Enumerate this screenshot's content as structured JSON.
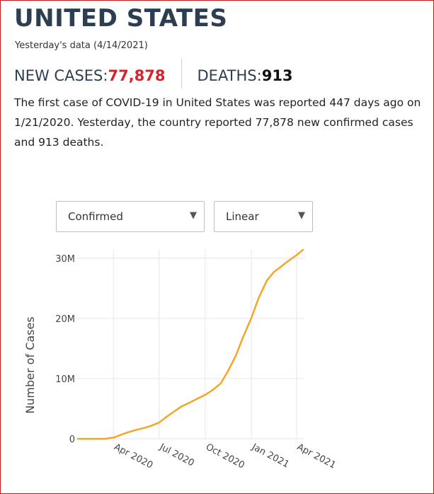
{
  "header": {
    "title": "UNITED STATES",
    "subtitle": "Yesterday's data (4/14/2021)"
  },
  "stats": {
    "new_cases_label": "NEW CASES: ",
    "new_cases_value": "77,878",
    "deaths_label": "DEATHS: ",
    "deaths_value": "913"
  },
  "description": "The first case of COVID-19 in United States was reported 447 days ago on 1/21/2020. Yesterday, the country reported 77,878 new confirmed cases and 913 deaths.",
  "controls": {
    "metric_selected": "Confirmed",
    "scale_selected": "Linear",
    "arrow_glyph": "▼"
  },
  "colors": {
    "accent_red": "#d9222a",
    "title_dark": "#2c3e50",
    "line_orange": "#f5a623",
    "grid": "#e6e6e6"
  },
  "chart_data": {
    "type": "line",
    "title": "",
    "xlabel": "",
    "ylabel": "Number of Cases",
    "y_ticks": [
      0,
      10000000,
      20000000,
      30000000
    ],
    "y_tick_labels": [
      "0",
      "10M",
      "20M",
      "30M"
    ],
    "ylim": [
      0,
      31500000
    ],
    "x_ticks": [
      "2020-04-01",
      "2020-07-01",
      "2020-10-01",
      "2021-01-01",
      "2021-04-01"
    ],
    "x_tick_labels": [
      "Apr 2020",
      "Jul 2020",
      "Oct 2020",
      "Jan 2021",
      "Apr 2021"
    ],
    "xlim": [
      "2020-01-21",
      "2021-04-14"
    ],
    "grid": true,
    "series": [
      {
        "x": [
          "2020-01-21",
          "2020-03-01",
          "2020-03-15",
          "2020-04-01",
          "2020-04-15",
          "2020-05-01",
          "2020-05-15",
          "2020-06-01",
          "2020-06-15",
          "2020-07-01",
          "2020-07-15",
          "2020-08-01",
          "2020-08-15",
          "2020-09-01",
          "2020-09-15",
          "2020-10-01",
          "2020-10-15",
          "2020-11-01",
          "2020-11-15",
          "2020-12-01",
          "2020-12-15",
          "2021-01-01",
          "2021-01-15",
          "2021-02-01",
          "2021-02-15",
          "2021-03-01",
          "2021-03-15",
          "2021-04-01",
          "2021-04-14"
        ],
        "y": [
          0,
          100,
          5000,
          200000,
          640000,
          1100000,
          1450000,
          1800000,
          2150000,
          2700000,
          3600000,
          4600000,
          5400000,
          6050000,
          6650000,
          7300000,
          8050000,
          9200000,
          11200000,
          13800000,
          16800000,
          20100000,
          23300000,
          26300000,
          27700000,
          28600000,
          29500000,
          30500000,
          31400000
        ]
      }
    ]
  }
}
